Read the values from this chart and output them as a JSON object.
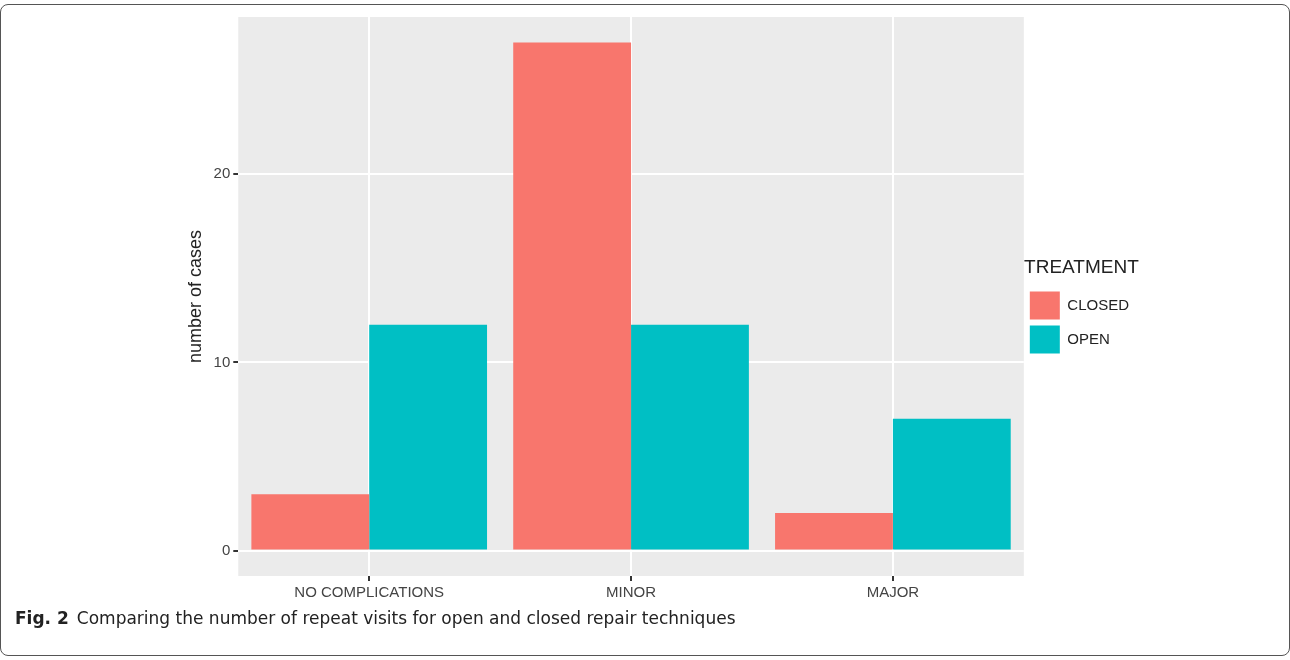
{
  "chart_data": {
    "type": "bar",
    "categories": [
      "NO COMPLICATIONS",
      "MINOR",
      "MAJOR"
    ],
    "series": [
      {
        "name": "CLOSED",
        "color": "#f8766d",
        "values": [
          3,
          27,
          2
        ]
      },
      {
        "name": "OPEN",
        "color": "#00bfc4",
        "values": [
          12,
          12,
          7
        ]
      }
    ],
    "ylabel": "number of cases",
    "ylim": [
      -1.35,
      28.35
    ],
    "yticks": [
      0,
      10,
      20
    ],
    "grid": true,
    "legend": "right",
    "legend_title": "TREATMENT",
    "annotations": [
      "Fig. 2",
      "Comparing the number of repeat visits for open and closed repair techniques"
    ]
  }
}
